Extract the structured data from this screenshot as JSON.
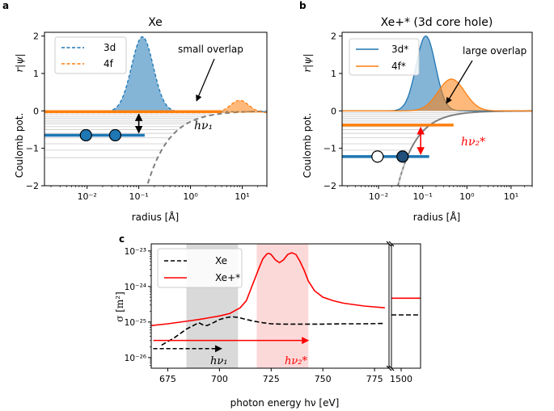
{
  "chart_data": [
    {
      "panel": "a",
      "type": "line",
      "title": "Xe",
      "xlabel": "radius [Å]",
      "ylabel_left": "Coulomb pot.",
      "ylabel_top": "r|ψ|",
      "xscale": "log",
      "xlim": [
        0.0015,
        30
      ],
      "ylim": [
        -2,
        2.1
      ],
      "xticks": [
        0.01,
        0.1,
        1,
        10
      ],
      "xtick_labels": [
        "10⁻²",
        "10⁻¹",
        "10⁰",
        "10¹"
      ],
      "yticks": [
        -2,
        -1,
        0,
        1,
        2
      ],
      "ytick_labels": [
        "−2",
        "−1",
        "0",
        "1",
        "2"
      ],
      "series": [
        {
          "name": "3d",
          "kind": "orbital",
          "color": "#1f77b4",
          "center_log10": -0.93,
          "width_log10": 0.21,
          "amplitude": 2.0,
          "baseline": -0.02,
          "level": -0.65
        },
        {
          "name": "4f",
          "kind": "orbital",
          "color": "#ff7f0e",
          "center_log10": 0.95,
          "width_log10": 0.18,
          "amplitude": 0.33,
          "baseline": -0.05,
          "level": -0.02
        }
      ],
      "potential": {
        "name": "Coulomb potential",
        "color": "#7f7f7f",
        "r_min": 0.12,
        "scale": 0.29
      },
      "electrons": {
        "filled": 2,
        "holes": 0
      },
      "annotations": [
        {
          "text": "small overlap",
          "kind": "arrow"
        },
        {
          "text": "hν₁",
          "kind": "transition",
          "color": "#000000"
        }
      ],
      "legend": {
        "position": "top-left",
        "entries": [
          "3d",
          "4f"
        ]
      }
    },
    {
      "panel": "b",
      "type": "line",
      "title": "Xe+* (3d core hole)",
      "xlabel": "radius [Å]",
      "ylabel_left": "Coulomb pot.",
      "ylabel_top": "r|ψ|",
      "xscale": "log",
      "xlim": [
        0.0015,
        30
      ],
      "ylim": [
        -2,
        2.1
      ],
      "xticks": [
        0.01,
        0.1,
        1,
        10
      ],
      "xtick_labels": [
        "10⁻²",
        "10⁻¹",
        "10⁰",
        "10¹"
      ],
      "yticks": [
        -2,
        -1,
        0,
        1,
        2
      ],
      "ytick_labels": [
        "−2",
        "−1",
        "0",
        "1",
        "2"
      ],
      "series": [
        {
          "name": "3d*",
          "kind": "orbital",
          "color": "#1f77b4",
          "center_log10": -0.93,
          "width_log10": 0.22,
          "amplitude": 2.0,
          "baseline": 0.0,
          "level": -1.22
        },
        {
          "name": "4f*",
          "kind": "orbital",
          "color": "#ff7f0e",
          "center_log10": -0.35,
          "width_log10": 0.3,
          "amplitude": 0.85,
          "baseline": 0.0,
          "level": -0.38
        }
      ],
      "potential": {
        "name": "Coulomb potential",
        "color": "#7f7f7f",
        "r_min": 0.045,
        "scale": 0.055
      },
      "electrons": {
        "filled": 1,
        "holes": 1
      },
      "annotations": [
        {
          "text": "large overlap",
          "kind": "arrow"
        },
        {
          "text": "hν₂*",
          "kind": "transition",
          "color": "#ff0000"
        }
      ],
      "legend": {
        "position": "top-left",
        "entries": [
          "3d*",
          "4f*"
        ]
      }
    },
    {
      "panel": "c",
      "type": "line",
      "xlabel": "photon energy hν [eV]",
      "ylabel": "σ [m²]",
      "yscale": "log",
      "ylim_log10": [
        -26.3,
        -22.8
      ],
      "yticks_log10": [
        -26,
        -25,
        -24,
        -23
      ],
      "ytick_labels": [
        "10⁻²⁶",
        "10⁻²⁵",
        "10⁻²⁴",
        "10⁻²³"
      ],
      "xlim_main": [
        667,
        782
      ],
      "xticks_main": [
        675,
        700,
        725,
        750,
        775
      ],
      "xlim_inset": [
        1495,
        1510
      ],
      "xticks_inset": [
        1500
      ],
      "series": [
        {
          "name": "Xe",
          "style": "dashed",
          "color": "#000000",
          "x": [
            672,
            678,
            684,
            688,
            690,
            692,
            694,
            697,
            700,
            703,
            706,
            709,
            713,
            717,
            721,
            725,
            730,
            735,
            740,
            750,
            760,
            770,
            780
          ],
          "log10": [
            -25.65,
            -25.45,
            -25.2,
            -25.08,
            -25.02,
            -25.08,
            -25.1,
            -25.02,
            -24.93,
            -24.88,
            -24.85,
            -24.87,
            -24.93,
            -24.98,
            -25.02,
            -25.05,
            -25.06,
            -25.06,
            -25.06,
            -25.06,
            -25.05,
            -25.05,
            -25.04
          ],
          "inset_log10": -24.8
        },
        {
          "name": "Xe+*",
          "style": "solid",
          "color": "#ff0000",
          "x": [
            667,
            675,
            685,
            690,
            695,
            700,
            705,
            710,
            713,
            716,
            719,
            721,
            723,
            724,
            725,
            727,
            729,
            731,
            733,
            735,
            737,
            739,
            741,
            743,
            746,
            750,
            755,
            760,
            770,
            780
          ],
          "log10": [
            -25.1,
            -25.05,
            -24.97,
            -24.93,
            -24.88,
            -24.83,
            -24.76,
            -24.6,
            -24.4,
            -23.95,
            -23.5,
            -23.22,
            -23.08,
            -23.07,
            -23.1,
            -23.25,
            -23.33,
            -23.25,
            -23.1,
            -23.05,
            -23.1,
            -23.3,
            -23.55,
            -23.85,
            -24.12,
            -24.3,
            -24.4,
            -24.47,
            -24.55,
            -24.6
          ],
          "inset_log10": -24.33
        }
      ],
      "shaded_bands": [
        {
          "x": [
            684,
            709
          ],
          "color": "#d9d9d9",
          "label": "hν₁"
        },
        {
          "x": [
            718,
            743
          ],
          "color": "#fcd9d9",
          "label": "hν₂*"
        }
      ],
      "arrows": [
        {
          "from": 668,
          "to": 701,
          "log10": -25.75,
          "style": "dashed",
          "color": "#000000"
        },
        {
          "from": 668,
          "to": 743,
          "log10": -25.52,
          "style": "solid",
          "color": "#ff0000"
        }
      ],
      "legend": {
        "position": "top-left",
        "entries": [
          "Xe",
          "Xe+*"
        ]
      }
    }
  ],
  "panel_labels": {
    "a": "a",
    "b": "b",
    "c": "c"
  },
  "axis_break": "//"
}
